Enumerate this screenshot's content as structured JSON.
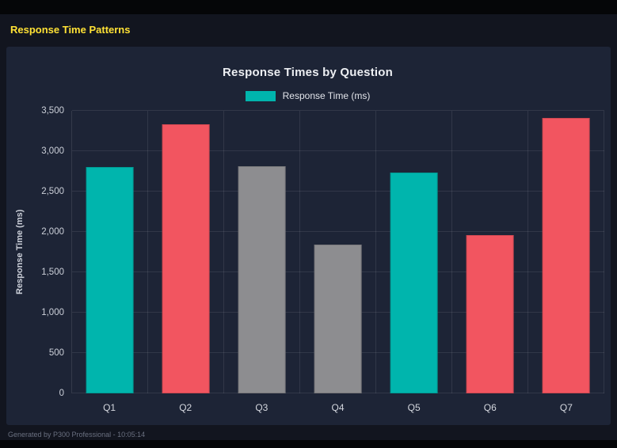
{
  "page": {
    "heading": "Response Time Patterns",
    "footer": "Generated by P300 Professional - 10:05:14"
  },
  "colors": {
    "heading_yellow": "#ffe135",
    "panel_background": "#1d2436",
    "page_background": "#12151f",
    "teal": "#00b5ad",
    "red": "#f25560",
    "gray": "#8d8d90"
  },
  "chart_data": {
    "type": "bar",
    "title": "Response Times by Question",
    "legend": [
      {
        "label": "Response Time (ms)",
        "color": "#00b5ad"
      }
    ],
    "legend_position": "top",
    "categories": [
      "Q1",
      "Q2",
      "Q3",
      "Q4",
      "Q5",
      "Q6",
      "Q7"
    ],
    "values": [
      2800,
      3330,
      2810,
      1845,
      2735,
      1960,
      3410
    ],
    "bar_colors": [
      "#00b5ad",
      "#f25560",
      "#8d8d90",
      "#8d8d90",
      "#00b5ad",
      "#f25560",
      "#f25560"
    ],
    "xlabel": "",
    "ylabel": "Response Time (ms)",
    "ylim": [
      0,
      3500
    ],
    "yticks": [
      0,
      500,
      1000,
      1500,
      2000,
      2500,
      3000,
      3500
    ],
    "ytick_labels": [
      "0",
      "500",
      "1,000",
      "1,500",
      "2,000",
      "2,500",
      "3,000",
      "3,500"
    ],
    "grid": true
  }
}
